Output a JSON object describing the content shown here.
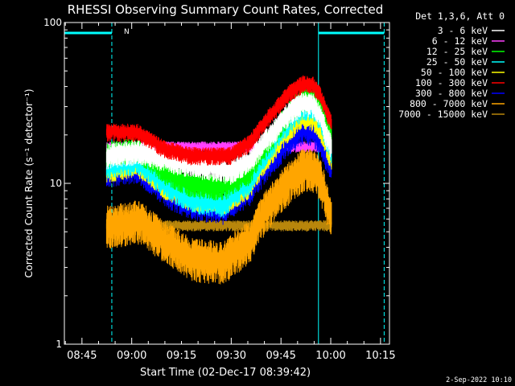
{
  "chart_data": {
    "type": "line",
    "title": "RHESSI Observing Summary Count Rates, Corrected",
    "ylabel": "Corrected Count Rate (s⁻¹ detector⁻¹)",
    "xlabel": "Start Time (02-Dec-17 08:39:42)",
    "x_unit": "minutes after 08:39:42",
    "xlim": [
      0,
      98
    ],
    "ylim": [
      1,
      100
    ],
    "yscale": "log",
    "x_ticks": [
      {
        "t": 5.3,
        "label": "08:45"
      },
      {
        "t": 20.3,
        "label": "09:00"
      },
      {
        "t": 35.3,
        "label": "09:15"
      },
      {
        "t": 50.3,
        "label": "09:30"
      },
      {
        "t": 65.3,
        "label": "09:45"
      },
      {
        "t": 80.3,
        "label": "10:00"
      },
      {
        "t": 95.3,
        "label": "10:15"
      }
    ],
    "y_tick_labels": [
      {
        "v": 1,
        "label": "1"
      },
      {
        "v": 10,
        "label": "10"
      },
      {
        "v": 100,
        "label": "100"
      }
    ],
    "legend_title": "Det 1,3,6, Att 0",
    "legend_placement": "right",
    "series": [
      {
        "name": "3 - 6 keV",
        "color": "#ffffff",
        "noise": 0.07,
        "points": [
          [
            12.7,
            15
          ],
          [
            22,
            16
          ],
          [
            32,
            14
          ],
          [
            50,
            12
          ],
          [
            56,
            14
          ],
          [
            63,
            21
          ],
          [
            68,
            28
          ],
          [
            72,
            32
          ],
          [
            75,
            31
          ],
          [
            77,
            27
          ],
          [
            79,
            20
          ],
          [
            80.5,
            17
          ]
        ]
      },
      {
        "name": "6 - 12 keV",
        "color": "#ff40ff",
        "noise": 0.03,
        "points": [
          [
            12.7,
            17
          ],
          [
            80.5,
            17
          ]
        ]
      },
      {
        "name": "12 - 25 keV",
        "color": "#00ff00",
        "noise": 0.07,
        "points": [
          [
            12.7,
            15.5
          ],
          [
            22,
            16.5
          ],
          [
            30,
            12
          ],
          [
            38,
            10
          ],
          [
            48,
            9.5
          ],
          [
            56,
            12
          ],
          [
            63,
            20
          ],
          [
            68,
            28
          ],
          [
            72,
            34
          ],
          [
            75,
            34
          ],
          [
            77,
            30
          ],
          [
            79,
            22
          ],
          [
            80.5,
            20
          ]
        ]
      },
      {
        "name": "25 - 50 keV",
        "color": "#00ffff",
        "noise": 0.07,
        "points": [
          [
            12.7,
            13
          ],
          [
            22,
            14
          ],
          [
            30,
            10
          ],
          [
            38,
            8
          ],
          [
            48,
            7.5
          ],
          [
            56,
            10.5
          ],
          [
            63,
            18
          ],
          [
            68,
            25
          ],
          [
            72,
            30
          ],
          [
            75,
            30
          ],
          [
            77,
            26
          ],
          [
            79,
            19
          ],
          [
            80.5,
            16
          ]
        ]
      },
      {
        "name": "50 - 100 keV",
        "color": "#ffff00",
        "noise": 0.06,
        "points": [
          [
            12.7,
            12
          ],
          [
            22,
            13
          ],
          [
            30,
            9.5
          ],
          [
            38,
            8
          ],
          [
            48,
            7.5
          ],
          [
            56,
            9.5
          ],
          [
            63,
            16
          ],
          [
            68,
            22
          ],
          [
            72,
            26
          ],
          [
            75,
            25
          ],
          [
            77,
            22
          ],
          [
            79,
            17
          ],
          [
            80.5,
            14
          ]
        ]
      },
      {
        "name": "100 - 300 keV",
        "color": "#ff0000",
        "noise": 0.05,
        "points": [
          [
            12.7,
            21
          ],
          [
            22,
            21
          ],
          [
            30,
            16.5
          ],
          [
            38,
            15
          ],
          [
            50,
            15
          ],
          [
            56,
            18
          ],
          [
            63,
            28
          ],
          [
            68,
            37
          ],
          [
            72,
            42
          ],
          [
            75,
            41
          ],
          [
            77,
            36
          ],
          [
            79,
            28
          ],
          [
            80.5,
            24
          ]
        ]
      },
      {
        "name": "300 - 800 keV",
        "color": "#0000ff",
        "noise": 0.08,
        "points": [
          [
            12.7,
            12
          ],
          [
            22,
            12.5
          ],
          [
            30,
            9
          ],
          [
            38,
            7.5
          ],
          [
            48,
            7
          ],
          [
            56,
            9
          ],
          [
            63,
            14.5
          ],
          [
            68,
            19
          ],
          [
            72,
            22
          ],
          [
            75,
            21
          ],
          [
            77,
            19
          ],
          [
            79,
            15
          ],
          [
            80.5,
            13
          ]
        ]
      },
      {
        "name": "800 - 7000 keV",
        "color": "#ffa500",
        "noise": 0.12,
        "points": [
          [
            12.7,
            5.5
          ],
          [
            22,
            6
          ],
          [
            30,
            4.5
          ],
          [
            38,
            3.5
          ],
          [
            48,
            3.3
          ],
          [
            56,
            4.5
          ],
          [
            63,
            8
          ],
          [
            68,
            10.5
          ],
          [
            72,
            12.5
          ],
          [
            75,
            12.5
          ],
          [
            77,
            11
          ],
          [
            79,
            8
          ],
          [
            80.5,
            6.5
          ]
        ]
      },
      {
        "name": "7000 - 15000 keV",
        "color": "#b8860b",
        "noise": 0.03,
        "points": [
          [
            12.7,
            5.5
          ],
          [
            80.5,
            5.5
          ]
        ]
      }
    ],
    "shaded_intervals_color": "#00ffff",
    "night_intervals": [
      [
        0,
        14.3
      ],
      [
        76.6,
        96.4
      ]
    ],
    "interval_letter": "N"
  },
  "footer": {
    "date_stamp": "2-Sep-2022 10:10"
  }
}
